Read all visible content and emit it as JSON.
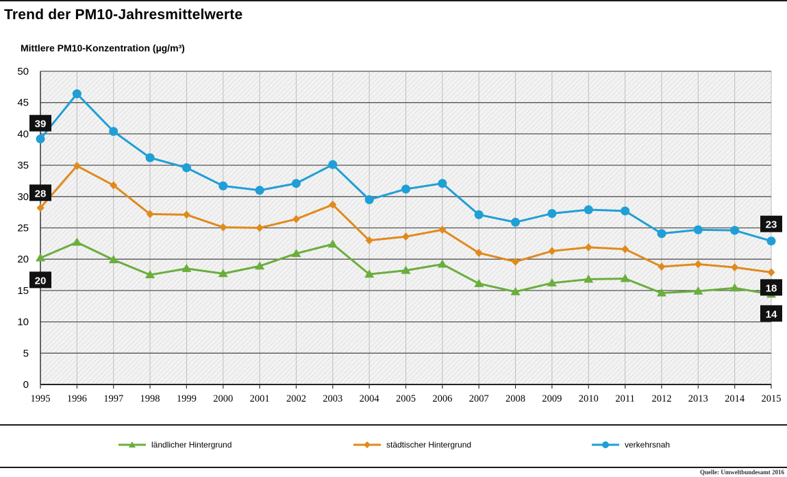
{
  "chart_data": {
    "type": "line",
    "title": "Trend der PM10-Jahresmittelwerte",
    "ylabel": "Mittlere PM10-Konzentration (µg/m³)",
    "xlabel": "",
    "ylim": [
      0,
      50
    ],
    "yticks": [
      0,
      5,
      10,
      15,
      20,
      25,
      30,
      35,
      40,
      45,
      50
    ],
    "grid": true,
    "legend_position": "bottom",
    "x": [
      "1995",
      "1996",
      "1997",
      "1998",
      "1999",
      "2000",
      "2001",
      "2002",
      "2003",
      "2004",
      "2005",
      "2006",
      "2007",
      "2008",
      "2009",
      "2010",
      "2011",
      "2012",
      "2013",
      "2014",
      "2015"
    ],
    "series": [
      {
        "name": "ländlicher Hintergrund",
        "color": "#6aae3d",
        "marker": "triangle",
        "values": [
          20.2,
          22.7,
          19.9,
          17.5,
          18.5,
          17.7,
          18.9,
          20.9,
          22.4,
          17.6,
          18.2,
          19.2,
          16.1,
          14.8,
          16.2,
          16.8,
          16.9,
          14.6,
          14.9,
          15.4,
          14.4
        ],
        "start_label": "20",
        "end_label": "14"
      },
      {
        "name": "städtischer Hintergrund",
        "color": "#e08a1e",
        "marker": "diamond",
        "values": [
          28.2,
          34.9,
          31.8,
          27.2,
          27.1,
          25.1,
          25.0,
          26.4,
          28.7,
          23.0,
          23.6,
          24.7,
          21.0,
          19.6,
          21.3,
          21.9,
          21.6,
          18.8,
          19.2,
          18.7,
          17.9
        ],
        "start_label": "28",
        "end_label": "18"
      },
      {
        "name": "verkehrsnah",
        "color": "#1f9fd6",
        "marker": "circle",
        "values": [
          39.2,
          46.4,
          40.4,
          36.2,
          34.6,
          31.7,
          31.0,
          32.1,
          35.1,
          29.5,
          31.2,
          32.1,
          27.1,
          25.9,
          27.3,
          27.9,
          27.7,
          24.1,
          24.7,
          24.6,
          22.9
        ],
        "start_label": "39",
        "end_label": "23"
      }
    ]
  },
  "source": "Quelle: Umweltbundesamt 2016"
}
